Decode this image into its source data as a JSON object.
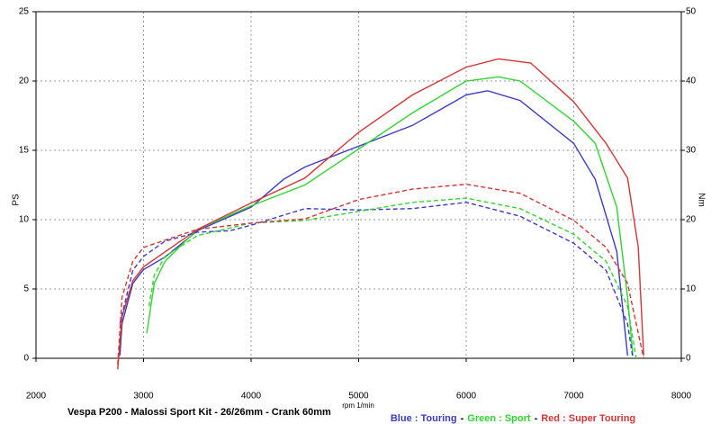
{
  "chart_data": {
    "type": "line",
    "title": "Vespa P200 - Malossi Sport Kit - 26/26mm - Crank 60mm",
    "x_label": "rpm 1/min",
    "y_label": "PS",
    "y2_label": "Nm",
    "xlim": [
      2000,
      8000
    ],
    "xticks": [
      2000,
      3000,
      4000,
      5000,
      6000,
      7000,
      8000
    ],
    "ylim": [
      0,
      25
    ],
    "yticks": [
      0,
      5,
      10,
      15,
      20,
      25
    ],
    "y2lim": [
      0,
      50
    ],
    "y2ticks": [
      0,
      10,
      20,
      30,
      40,
      50
    ],
    "grid": true,
    "legend_separator": "-",
    "series": [
      {
        "name": "Blue : Touring",
        "color": "#3b3bc8",
        "x": [
          2780,
          2800,
          2900,
          3000,
          3200,
          3500,
          4000,
          4300,
          4500,
          5000,
          5500,
          6000,
          6200,
          6500,
          7000,
          7200,
          7400,
          7500
        ],
        "values": [
          0.2,
          2.5,
          5.4,
          6.4,
          7.3,
          9.2,
          10.9,
          12.9,
          13.8,
          15.3,
          16.8,
          19.0,
          19.3,
          18.6,
          15.5,
          12.9,
          7.7,
          0.2
        ]
      },
      {
        "name": "Green : Sport",
        "color": "#2fd62f",
        "x": [
          3030,
          3100,
          3200,
          3500,
          4000,
          4500,
          5000,
          5500,
          6000,
          6300,
          6500,
          7000,
          7200,
          7400,
          7500,
          7550
        ],
        "values": [
          1.8,
          5.4,
          7.0,
          9.3,
          11.0,
          12.5,
          15.1,
          17.7,
          20.0,
          20.3,
          20.0,
          17.1,
          15.5,
          10.9,
          4.4,
          0.2
        ]
      },
      {
        "name": "Red : Super Touring",
        "color": "#d63434",
        "x": [
          2760,
          2800,
          2900,
          3000,
          3500,
          4000,
          4500,
          5000,
          5500,
          6000,
          6300,
          6600,
          7000,
          7300,
          7500,
          7600,
          7650
        ],
        "values": [
          -0.8,
          3.0,
          5.6,
          6.6,
          9.3,
          11.2,
          13.0,
          16.3,
          19.0,
          21.0,
          21.6,
          21.3,
          18.5,
          15.5,
          13.0,
          8.0,
          0.2
        ]
      },
      {
        "color": "#3b3bc8",
        "axis": "y2",
        "dashed": true,
        "x": [
          2780,
          2900,
          3000,
          3200,
          3500,
          3800,
          4000,
          4500,
          5000,
          5500,
          6000,
          6500,
          7000,
          7300,
          7500,
          7550
        ],
        "values": [
          5.0,
          12.7,
          14.7,
          16.9,
          18.2,
          18.4,
          19.2,
          21.6,
          21.4,
          21.6,
          22.5,
          20.5,
          16.6,
          12.7,
          5.0,
          0.0
        ]
      },
      {
        "color": "#2fd62f",
        "axis": "y2",
        "dashed": true,
        "x": [
          3050,
          3100,
          3200,
          3500,
          4000,
          4500,
          5000,
          5500,
          6000,
          6500,
          7000,
          7300,
          7500,
          7580
        ],
        "values": [
          7.5,
          12.0,
          14.7,
          17.7,
          19.5,
          19.9,
          21.2,
          22.5,
          23.1,
          21.6,
          17.9,
          14.0,
          7.5,
          0.0
        ]
      },
      {
        "color": "#d63434",
        "axis": "y2",
        "dashed": true,
        "x": [
          2760,
          2800,
          2900,
          3000,
          3500,
          4000,
          4500,
          5000,
          5500,
          6000,
          6500,
          7000,
          7300,
          7500,
          7650
        ],
        "values": [
          -0.9,
          8.8,
          14.0,
          16.0,
          18.6,
          19.5,
          20.1,
          22.9,
          24.4,
          25.1,
          23.8,
          19.9,
          16.0,
          10.8,
          0.0
        ]
      }
    ]
  }
}
